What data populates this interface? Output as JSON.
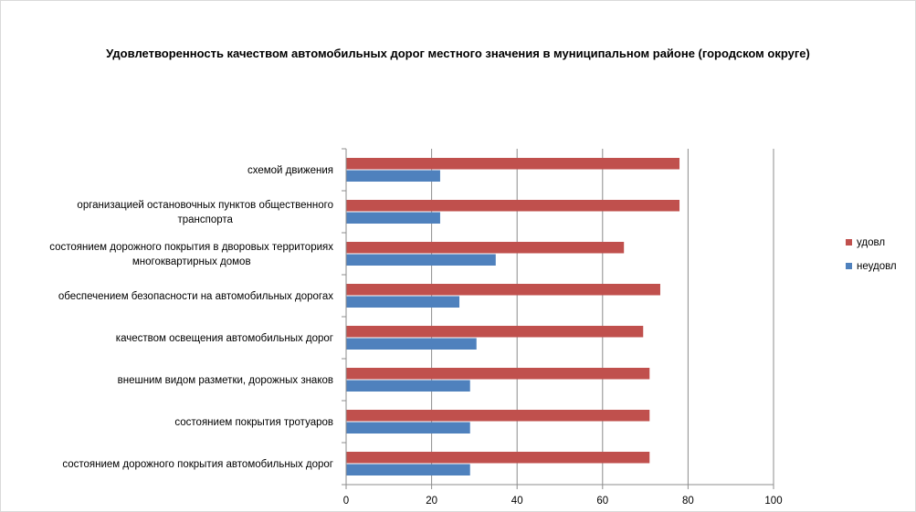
{
  "chart_data": {
    "type": "bar",
    "orientation": "horizontal",
    "title": "Удовлетворенность качеством автомобильных дорог местного значения в муниципальном районе (городском округе)",
    "categories": [
      [
        "схемой движения"
      ],
      [
        "организацией остановочных пунктов общественного",
        "транспорта"
      ],
      [
        "состоянием дорожного покрытия в дворовых территориях",
        "многоквартирных домов"
      ],
      [
        "обеспечением  безопасности на автомобильных дорогах"
      ],
      [
        "качеством освещения  автомобильных дорог"
      ],
      [
        "внешним  видом  разметки, дорожных знаков"
      ],
      [
        "состоянием покрытия тротуаров"
      ],
      [
        "состоянием дорожного покрытия автомобильных дорог"
      ]
    ],
    "series": [
      {
        "name": "удовл",
        "color": "#c0504d",
        "values": [
          78,
          78,
          65,
          73.5,
          69.5,
          71,
          71,
          71
        ]
      },
      {
        "name": "неудовл",
        "color": "#4f81bd",
        "values": [
          22,
          22,
          35,
          26.5,
          30.5,
          29,
          29,
          29
        ]
      }
    ],
    "xlim": [
      0,
      100
    ],
    "xticks": [
      "0",
      "20",
      "40",
      "60",
      "80",
      "100"
    ],
    "grid": true,
    "legend_position": "right"
  }
}
